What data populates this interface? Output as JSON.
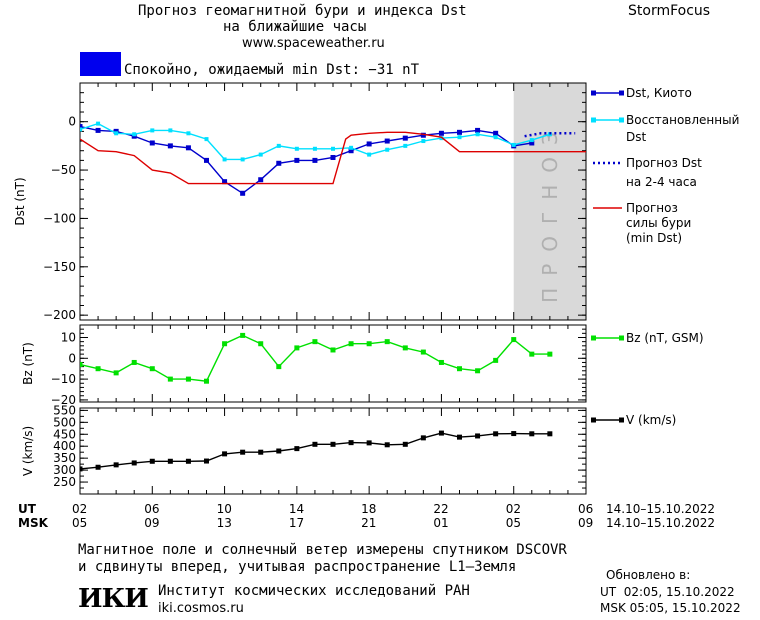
{
  "header": {
    "title_line1": "Прогноз геомагнитной бури и индекса Dst",
    "title_line2": "на ближайшие часы",
    "site": "www.spaceweather.ru",
    "brand": "StormFocus",
    "status_text": "Спокойно, ожидаемый min Dst: −31 nT",
    "status_color": "#0000ee"
  },
  "legend": {
    "dst_kyoto": "Dst, Киото",
    "restored_1": "Восстановленный",
    "restored_2": "Dst",
    "forecast_1": "Прогноз Dst",
    "forecast_2": "на 2-4 часа",
    "storm_1": "Прогноз",
    "storm_2": "силы бури",
    "storm_3": "(min Dst)",
    "bz": "Bz (nT, GSM)",
    "v": "V (km/s)"
  },
  "forecast_band_label": "ПРОГНОЗ",
  "time_axis": {
    "ut_label": "UT",
    "msk_label": "MSK",
    "ut_ticks": [
      "02",
      "06",
      "10",
      "14",
      "18",
      "22",
      "02",
      "06"
    ],
    "msk_ticks": [
      "05",
      "09",
      "13",
      "17",
      "21",
      "01",
      "05",
      "09"
    ],
    "ut_range": "14.10–15.10.2022",
    "msk_range": "14.10–15.10.2022"
  },
  "footer": {
    "note_line1": "Магнитное поле и солнечный ветер измерены спутником DSCOVR",
    "note_line2": "и сдвинуты вперед, учитывая распространение L1–Земля",
    "logo": "ИКИ",
    "institute": "Институт космических исследований РАН",
    "institute_site": "iki.cosmos.ru",
    "updated_label": "Обновлено в:",
    "updated_ut": "UT  02:05, 15.10.2022",
    "updated_msk": "MSK 05:05, 15.10.2022"
  },
  "chart_data": [
    {
      "type": "line",
      "ylabel": "Dst (nT)",
      "ylim": [
        -205,
        40
      ],
      "yticks": [
        0,
        -50,
        -100,
        -150,
        -200
      ],
      "x_hours_from_02UT": true,
      "xlim": [
        0,
        28
      ],
      "forecast_band": [
        24,
        28
      ],
      "series": [
        {
          "name": "Dst, Киото",
          "color": "#0000cc",
          "x": [
            0,
            1,
            2,
            3,
            4,
            5,
            6,
            7,
            8,
            9,
            10,
            11,
            12,
            13,
            14,
            15,
            16,
            17,
            18,
            19,
            20,
            21,
            22,
            23,
            24,
            25
          ],
          "y": [
            -5,
            -9,
            -10,
            -15,
            -22,
            -25,
            -27,
            -40,
            -62,
            -74,
            -60,
            -43,
            -40,
            -40,
            -37,
            -30,
            -23,
            -20,
            -17,
            -14,
            -12,
            -11,
            -9,
            -12,
            -25,
            -22
          ]
        },
        {
          "name": "Восстановленный Dst",
          "color": "#00e0ff",
          "x": [
            0,
            1,
            2,
            3,
            4,
            5,
            6,
            7,
            8,
            9,
            10,
            11,
            12,
            13,
            14,
            15,
            16,
            17,
            18,
            19,
            20,
            21,
            22,
            23,
            24,
            25,
            26
          ],
          "y": [
            -8,
            -2,
            -12,
            -13,
            -9,
            -9,
            -12,
            -18,
            -39,
            -39,
            -34,
            -25,
            -28,
            -28,
            -28,
            -27,
            -34,
            -29,
            -25,
            -20,
            -17,
            -16,
            -13,
            -16,
            -24,
            -19,
            -13
          ]
        },
        {
          "name": "Прогноз Dst на 2-4 часа",
          "color": "#0000cc",
          "dash": true,
          "x": [
            24.6,
            25.5,
            26.5,
            27.4
          ],
          "y": [
            -15,
            -12,
            -12,
            -12
          ]
        },
        {
          "name": "Прогноз силы бури (min Dst)",
          "color": "#dd0000",
          "x": [
            -1,
            0,
            1,
            2,
            3,
            4,
            5,
            6,
            7,
            8,
            9,
            10,
            11,
            12,
            13,
            14,
            14.7,
            15,
            16,
            17,
            18,
            19,
            20,
            21,
            22,
            23,
            24,
            25,
            26,
            27,
            28
          ],
          "y": [
            -18,
            -18,
            -30,
            -31,
            -35,
            -50,
            -53,
            -64,
            -64,
            -64,
            -64,
            -64,
            -64,
            -64,
            -64,
            -64,
            -18,
            -14,
            -12,
            -11,
            -11,
            -13,
            -16,
            -31,
            -31,
            -31,
            -31,
            -31,
            -31,
            -31,
            -31
          ]
        }
      ]
    },
    {
      "type": "line",
      "ylabel": "Bz (nT)",
      "ylim": [
        -21,
        16
      ],
      "yticks": [
        10,
        0,
        -10,
        -20
      ],
      "xlim": [
        0,
        28
      ],
      "series": [
        {
          "name": "Bz (nT, GSM)",
          "color": "#00e000",
          "x": [
            0,
            1,
            2,
            3,
            4,
            5,
            6,
            7,
            8,
            9,
            10,
            11,
            12,
            13,
            14,
            15,
            16,
            17,
            18,
            19,
            20,
            21,
            22,
            23,
            24,
            25,
            26
          ],
          "y": [
            -3,
            -5,
            -7,
            -2,
            -5,
            -10,
            -10,
            -11,
            7,
            11,
            7,
            -4,
            5,
            8,
            4,
            7,
            7,
            8,
            5,
            3,
            -2,
            -5,
            -6,
            -1,
            9,
            2,
            2
          ]
        }
      ]
    },
    {
      "type": "line",
      "ylabel": "V (km/s)",
      "ylim": [
        200,
        560
      ],
      "yticks": [
        550,
        500,
        450,
        400,
        350,
        300,
        250
      ],
      "xlim": [
        0,
        28
      ],
      "series": [
        {
          "name": "V (km/s)",
          "color": "#000000",
          "x": [
            0,
            1,
            2,
            3,
            4,
            5,
            6,
            7,
            8,
            9,
            10,
            11,
            12,
            13,
            14,
            15,
            16,
            17,
            18,
            19,
            20,
            21,
            22,
            23,
            24,
            25,
            26
          ],
          "y": [
            305,
            312,
            322,
            330,
            337,
            337,
            337,
            338,
            368,
            375,
            375,
            380,
            390,
            408,
            408,
            415,
            414,
            406,
            408,
            435,
            455,
            438,
            443,
            452,
            453,
            452,
            452
          ]
        }
      ]
    }
  ]
}
